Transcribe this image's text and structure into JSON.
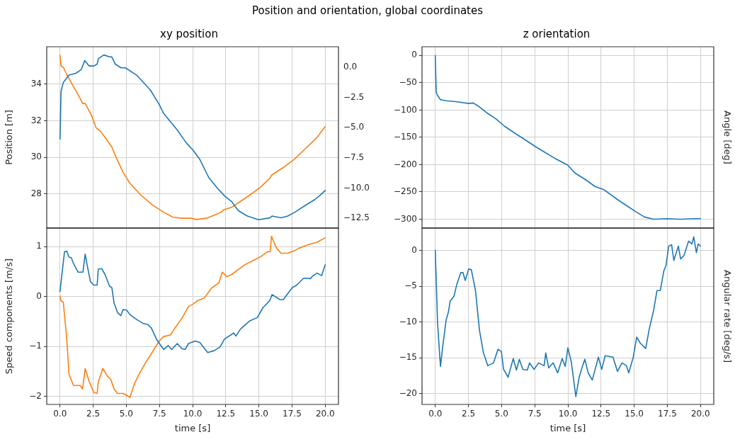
{
  "chart_data": [
    {
      "type": "line",
      "title": "xy position",
      "ylabel": "Position [m]",
      "annotations": [
        "Position and orientation, global coordinates"
      ],
      "grid": true,
      "tick_labels": "y",
      "xlim": [
        -1,
        21
      ],
      "xticks": [
        0,
        2.5,
        5,
        7.5,
        10,
        12.5,
        15,
        17.5,
        20
      ],
      "ylim": [
        26.15,
        36.05
      ],
      "yticks": [
        28,
        30,
        32,
        34
      ],
      "y2lim": [
        -13.3,
        1.7
      ],
      "y2ticks": [
        {
          "value": 0,
          "label": "0.0"
        },
        {
          "value": -2.5,
          "label": "−2.5"
        },
        {
          "value": -5,
          "label": "−5.0"
        },
        {
          "value": -7.5,
          "label": "−7.5"
        },
        {
          "value": -10,
          "label": "−10.0"
        },
        {
          "value": -12.5,
          "label": "−12.5"
        }
      ],
      "series": [
        {
          "color": "#1f77b4",
          "x": [
            0,
            0.08,
            0.25,
            0.68,
            1.19,
            1.6,
            1.87,
            2.2,
            2.55,
            2.8,
            2.9,
            3.3,
            3.74,
            3.9,
            4.17,
            4.6,
            4.93,
            5.78,
            6.8,
            7.48,
            7.82,
            8.16,
            8.84,
            9.52,
            10.03,
            10.54,
            11.22,
            11.9,
            12.41,
            12.93,
            13.44,
            14.12,
            14.97,
            15.82,
            15.99,
            16.67,
            17.18,
            17.69,
            18.54,
            19.22,
            19.56,
            20
          ],
          "values": [
            31.0,
            33.6,
            34.1,
            34.5,
            34.6,
            34.8,
            35.3,
            35.0,
            35.0,
            35.1,
            35.4,
            35.6,
            35.5,
            35.5,
            35.1,
            34.9,
            34.9,
            34.5,
            33.7,
            32.9,
            32.4,
            32.1,
            31.5,
            30.8,
            30.4,
            29.9,
            28.9,
            28.3,
            27.9,
            27.6,
            27.1,
            26.8,
            26.6,
            26.7,
            26.8,
            26.7,
            26.8,
            27.0,
            27.4,
            27.7,
            27.9,
            28.2
          ]
        },
        {
          "color": "#ff7f0e",
          "axis": "y2",
          "x": [
            0,
            0.08,
            0.25,
            0.51,
            1.02,
            1.53,
            1.7,
            1.9,
            2.38,
            2.72,
            3.06,
            3.4,
            3.91,
            4.25,
            4.76,
            5.27,
            6.12,
            6.97,
            7.82,
            8.5,
            9.18,
            9.86,
            10.29,
            11.05,
            11.73,
            12.16,
            12.33,
            12.93,
            13.61,
            14.29,
            15.14,
            15.82,
            15.99,
            16.84,
            17.69,
            18.54,
            19.39,
            20
          ],
          "values": [
            1.0,
            0.1,
            0.0,
            -0.6,
            -1.6,
            -2.6,
            -3.0,
            -3.0,
            -4.0,
            -5.0,
            -5.3,
            -5.8,
            -6.6,
            -7.5,
            -8.7,
            -9.6,
            -10.6,
            -11.4,
            -12.0,
            -12.4,
            -12.5,
            -12.5,
            -12.6,
            -12.5,
            -12.2,
            -12.0,
            -11.8,
            -11.6,
            -11.1,
            -10.6,
            -9.9,
            -9.2,
            -8.9,
            -8.3,
            -7.6,
            -6.7,
            -5.8,
            -4.9
          ]
        }
      ]
    },
    {
      "type": "line",
      "xlabel": "time [s]",
      "ylabel": "Speed components [m/s]",
      "grid": true,
      "xlim": [
        -1,
        21
      ],
      "xticks": [
        {
          "value": 0,
          "label": "0.0"
        },
        2.5,
        {
          "value": 5,
          "label": "5.0"
        },
        7.5,
        {
          "value": 10,
          "label": "10.0"
        },
        12.5,
        {
          "value": 15,
          "label": "15.0"
        },
        17.5,
        {
          "value": 20,
          "label": "20.0"
        }
      ],
      "ylim": [
        -2.16,
        1.37
      ],
      "yticks": [
        {
          "value": -2,
          "label": "−2"
        },
        {
          "value": -1,
          "label": "−1"
        },
        0,
        1
      ],
      "series": [
        {
          "color": "#1f77b4",
          "x": [
            0,
            0.34,
            0.51,
            0.68,
            0.85,
            1.02,
            1.36,
            1.6,
            1.73,
            1.9,
            2.04,
            2.3,
            2.55,
            2.8,
            2.89,
            3.15,
            3.4,
            3.74,
            3.91,
            4.08,
            4.34,
            4.59,
            4.76,
            5.02,
            5.27,
            5.78,
            6.29,
            6.63,
            6.89,
            7.31,
            7.82,
            8.16,
            8.42,
            8.84,
            9.18,
            9.44,
            9.69,
            10.2,
            10.54,
            11.14,
            11.65,
            12.07,
            12.41,
            13.1,
            13.27,
            13.61,
            14.29,
            14.88,
            15.31,
            15.82,
            15.99,
            16.58,
            16.84,
            17.52,
            17.86,
            18.37,
            18.88,
            19.05,
            19.39,
            19.73,
            20
          ],
          "values": [
            0.1,
            0.9,
            0.91,
            0.79,
            0.78,
            0.66,
            0.49,
            0.49,
            0.49,
            0.85,
            0.64,
            0.3,
            0.23,
            0.23,
            0.55,
            0.56,
            0.44,
            0.21,
            0.18,
            -0.13,
            -0.32,
            -0.38,
            -0.26,
            -0.27,
            -0.36,
            -0.46,
            -0.54,
            -0.56,
            -0.63,
            -0.87,
            -1.06,
            -0.98,
            -1.06,
            -0.94,
            -1.04,
            -1.06,
            -0.94,
            -0.89,
            -0.92,
            -1.12,
            -1.08,
            -1.01,
            -0.85,
            -0.73,
            -0.79,
            -0.65,
            -0.49,
            -0.42,
            -0.22,
            -0.08,
            0.04,
            -0.06,
            -0.06,
            0.18,
            0.23,
            0.37,
            0.36,
            0.41,
            0.47,
            0.42,
            0.64
          ]
        },
        {
          "color": "#ff7f0e",
          "x": [
            0,
            0.08,
            0.25,
            0.51,
            0.68,
            1.02,
            1.53,
            1.7,
            1.9,
            2.21,
            2.55,
            2.8,
            2.89,
            3.23,
            3.57,
            3.83,
            4.08,
            4.34,
            4.76,
            5.1,
            5.27,
            5.61,
            5.95,
            6.46,
            6.97,
            7.48,
            7.82,
            8.33,
            8.67,
            9.18,
            9.69,
            10.03,
            10.37,
            10.88,
            11.39,
            11.99,
            12.24,
            12.59,
            12.93,
            13.44,
            13.95,
            14.63,
            15.14,
            15.65,
            15.85,
            15.95,
            16.33,
            16.67,
            17.18,
            17.69,
            18.03,
            18.71,
            19.39,
            20
          ],
          "values": [
            0.01,
            -0.09,
            -0.11,
            -0.85,
            -1.56,
            -1.78,
            -1.78,
            -1.85,
            -1.44,
            -1.71,
            -1.92,
            -1.94,
            -1.71,
            -1.44,
            -1.59,
            -1.66,
            -1.85,
            -1.94,
            -1.94,
            -1.99,
            -2.02,
            -1.75,
            -1.56,
            -1.32,
            -1.11,
            -0.89,
            -0.8,
            -0.77,
            -0.63,
            -0.44,
            -0.2,
            -0.15,
            -0.08,
            -0.03,
            0.16,
            0.28,
            0.49,
            0.4,
            0.44,
            0.54,
            0.64,
            0.73,
            0.8,
            0.9,
            0.9,
            1.21,
            0.97,
            0.87,
            0.87,
            0.92,
            0.97,
            1.04,
            1.09,
            1.18
          ]
        }
      ]
    },
    {
      "type": "line",
      "title": "z orientation",
      "ylabel": "Angle [deg]",
      "grid": true,
      "tick_labels": "y",
      "xlim": [
        -1,
        21
      ],
      "xticks": [
        0,
        2.5,
        5,
        7.5,
        10,
        12.5,
        15,
        17.5,
        20
      ],
      "ylim": [
        -316,
        16
      ],
      "yticks": [
        {
          "value": -300,
          "label": "−300"
        },
        {
          "value": -250,
          "label": "−250"
        },
        {
          "value": -200,
          "label": "−200"
        },
        {
          "value": -150,
          "label": "−150"
        },
        {
          "value": -100,
          "label": "−100"
        },
        {
          "value": -50,
          "label": "−50"
        },
        0
      ],
      "series": [
        {
          "color": "#1f77b4",
          "x": [
            0,
            0.07,
            0.14,
            0.39,
            0.82,
            1.67,
            2.52,
            2.86,
            3.2,
            3.88,
            4.56,
            5.24,
            5.92,
            7.62,
            8.98,
            10.0,
            10.51,
            11.36,
            12.04,
            12.72,
            13.74,
            14.42,
            15.1,
            15.78,
            16.46,
            17.48,
            18.5,
            19.52,
            20
          ],
          "values": [
            0,
            -67,
            -72,
            -81,
            -83,
            -85,
            -88,
            -87,
            -92,
            -105,
            -116,
            -130,
            -141,
            -168,
            -188,
            -201,
            -215,
            -228,
            -240,
            -246,
            -264,
            -275,
            -286,
            -296,
            -300,
            -299,
            -300,
            -299,
            -299
          ]
        }
      ]
    },
    {
      "type": "line",
      "xlabel": "time [s]",
      "ylabel": "Angular rate [deg/s]",
      "grid": true,
      "xlim": [
        -1,
        21
      ],
      "xticks": [
        {
          "value": 0,
          "label": "0.0"
        },
        2.5,
        {
          "value": 5,
          "label": "5.0"
        },
        7.5,
        {
          "value": 10,
          "label": "10.0"
        },
        12.5,
        {
          "value": 15,
          "label": "15.0"
        },
        17.5,
        {
          "value": 20,
          "label": "20.0"
        }
      ],
      "ylim": [
        -21.5,
        3.1
      ],
      "yticks": [
        {
          "value": -20,
          "label": "−20"
        },
        {
          "value": -15,
          "label": "−15"
        },
        {
          "value": -10,
          "label": "−10"
        },
        {
          "value": -5,
          "label": "−5"
        },
        0
      ],
      "series": [
        {
          "color": "#1f77b4",
          "x": [
            0,
            0.17,
            0.39,
            0.56,
            0.82,
            0.99,
            1.12,
            1.41,
            1.63,
            1.92,
            2.09,
            2.26,
            2.52,
            2.72,
            3.03,
            3.33,
            3.62,
            3.96,
            4.39,
            4.73,
            4.98,
            5.15,
            5.49,
            5.88,
            6.12,
            6.34,
            6.6,
            6.94,
            7.11,
            7.45,
            7.79,
            8.21,
            8.33,
            8.55,
            8.89,
            9.23,
            9.57,
            9.8,
            10.0,
            10.26,
            10.6,
            10.85,
            11.11,
            11.28,
            11.53,
            11.84,
            12.3,
            12.55,
            12.81,
            13.4,
            13.74,
            14.08,
            14.42,
            14.59,
            14.93,
            15.19,
            15.44,
            15.87,
            16.12,
            16.46,
            16.72,
            16.97,
            17.23,
            17.4,
            17.6,
            17.82,
            17.99,
            18.33,
            18.5,
            18.76,
            19.1,
            19.35,
            19.49,
            19.69,
            19.83,
            20
          ],
          "values": [
            0,
            -10.1,
            -16.2,
            -13.4,
            -9.7,
            -8.6,
            -7.1,
            -6.4,
            -4.7,
            -3.1,
            -3.1,
            -4.2,
            -2.6,
            -2.7,
            -5.6,
            -11.1,
            -14.2,
            -16.1,
            -15.7,
            -13.8,
            -14.1,
            -16.6,
            -17.7,
            -15.1,
            -16.7,
            -15.2,
            -16.6,
            -16.7,
            -15.7,
            -16.6,
            -15.7,
            -16.1,
            -14.3,
            -16.4,
            -15.7,
            -17.1,
            -15.1,
            -16.2,
            -13.6,
            -15.6,
            -20.4,
            -17.7,
            -16.1,
            -15.2,
            -17.1,
            -18.1,
            -14.9,
            -16.6,
            -14.7,
            -14.9,
            -16.9,
            -15.7,
            -16.1,
            -17.1,
            -14.9,
            -12.1,
            -12.9,
            -13.7,
            -11.1,
            -8.4,
            -5.6,
            -5.6,
            -2.9,
            -2.1,
            0.6,
            0.8,
            -1.4,
            0.6,
            -1.2,
            -0.7,
            1.3,
            0.9,
            1.9,
            -0.3,
            0.9,
            0.6
          ]
        }
      ]
    }
  ]
}
